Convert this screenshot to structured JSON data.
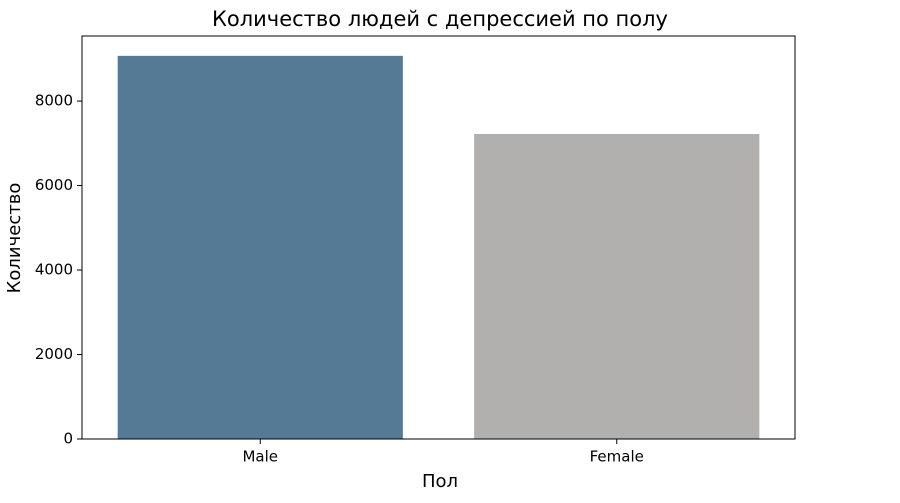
{
  "chart_data": {
    "type": "bar",
    "title": "Количество людей с депрессией по полу",
    "x_label": "Пол",
    "y_label": "Количество",
    "categories": [
      "Male",
      "Female"
    ],
    "values": [
      9070,
      7220
    ],
    "colors": [
      "#557a95",
      "#b1b0af"
    ],
    "ylim": [
      0,
      9540
    ],
    "yticks": [
      0,
      2000,
      4000,
      6000,
      8000
    ],
    "grid": false
  }
}
